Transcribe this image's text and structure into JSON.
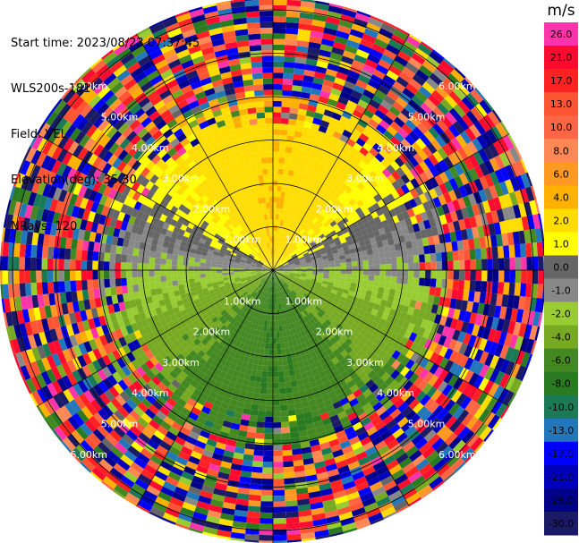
{
  "header": {
    "start_time": "Start time: 2023/08/23 07:37:45",
    "station": "WLS200s-181",
    "field": "Field: VEL",
    "elevation": "Elevation(deg): 35.30",
    "nrays": "NRays: 120"
  },
  "chart_data": {
    "type": "ppi-scan",
    "field": "VEL",
    "unit": "m/s",
    "elevation_deg": 35.3,
    "n_rays": 120,
    "range_rings_km": [
      1.0,
      2.0,
      3.0,
      4.0,
      5.0,
      6.0
    ],
    "ring_labels": [
      "1.00km",
      "2.00km",
      "3.00km",
      "4.00km",
      "5.00km",
      "6.00km"
    ],
    "data_max_range_km": 9.9,
    "coherent_range_km": 3.5,
    "azimuth_lines_deg": [
      0,
      30,
      60,
      90,
      120,
      150,
      180,
      210,
      240,
      270,
      300,
      330
    ],
    "velocity_pattern": [
      {
        "azimuth_deg": 0,
        "velocity_ms": 4.0
      },
      {
        "azimuth_deg": 45,
        "velocity_ms": 2.0
      },
      {
        "azimuth_deg": 90,
        "velocity_ms": -1.0
      },
      {
        "azimuth_deg": 135,
        "velocity_ms": -4.0
      },
      {
        "azimuth_deg": 180,
        "velocity_ms": -6.0
      },
      {
        "azimuth_deg": 225,
        "velocity_ms": -4.0
      },
      {
        "azimuth_deg": 270,
        "velocity_ms": -1.0
      },
      {
        "azimuth_deg": 315,
        "velocity_ms": 2.0
      }
    ],
    "colorbar": {
      "ticks": [
        "26.0",
        "21.0",
        "17.0",
        "13.0",
        "10.0",
        "8.0",
        "6.0",
        "4.0",
        "2.0",
        "1.0",
        "0.0",
        "-1.0",
        "-2.0",
        "-4.0",
        "-6.0",
        "-8.0",
        "-10.0",
        "-13.0",
        "-17.0",
        "-21.0",
        "-26.0",
        "-30.0"
      ],
      "colors": [
        "#ff33aa",
        "#ff0b2f",
        "#ff2222",
        "#ff5533",
        "#ff6644",
        "#ff8855",
        "#ff9922",
        "#ffb000",
        "#ffdd00",
        "#ffff00",
        "#666666",
        "#888888",
        "#99cc33",
        "#77aa22",
        "#448822",
        "#2a7a22",
        "#1a7a55",
        "#2277bb",
        "#0000ff",
        "#0000bb",
        "#000088",
        "#1a1a66"
      ]
    }
  }
}
